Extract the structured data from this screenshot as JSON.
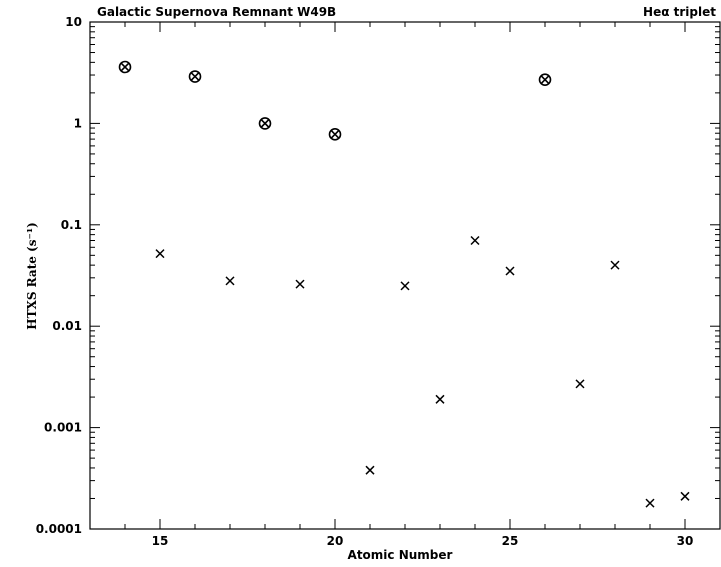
{
  "chart_data": {
    "type": "scatter",
    "title": "Galactic Supernova Remnant W49B",
    "subtitle": "Heα triplet",
    "xlabel": "Atomic Number",
    "ylabel": "HTXS Rate (s⁻¹)",
    "xlim": [
      13,
      31
    ],
    "ylim": [
      0.0001,
      10
    ],
    "yscale": "log",
    "grid": false,
    "x_ticks": [
      15,
      20,
      25,
      30
    ],
    "x_tick_labels": [
      "15",
      "20",
      "25",
      "30"
    ],
    "y_ticks": [
      0.0001,
      0.001,
      0.01,
      0.1,
      1,
      10
    ],
    "y_tick_labels": [
      "0.0001",
      "0.001",
      "0.01",
      "0.1",
      "1",
      "10"
    ],
    "series": [
      {
        "marker": "circled-cross",
        "x": [
          14,
          16,
          18,
          20,
          26
        ],
        "y": [
          3.6,
          2.9,
          1.0,
          0.78,
          2.7
        ]
      },
      {
        "marker": "cross",
        "x": [
          15,
          17,
          19,
          21,
          22,
          23,
          24,
          25,
          27,
          28,
          29,
          30
        ],
        "y": [
          0.052,
          0.028,
          0.026,
          0.00038,
          0.025,
          0.0019,
          0.07,
          0.035,
          0.0027,
          0.04,
          0.00018,
          0.00021
        ]
      }
    ]
  }
}
